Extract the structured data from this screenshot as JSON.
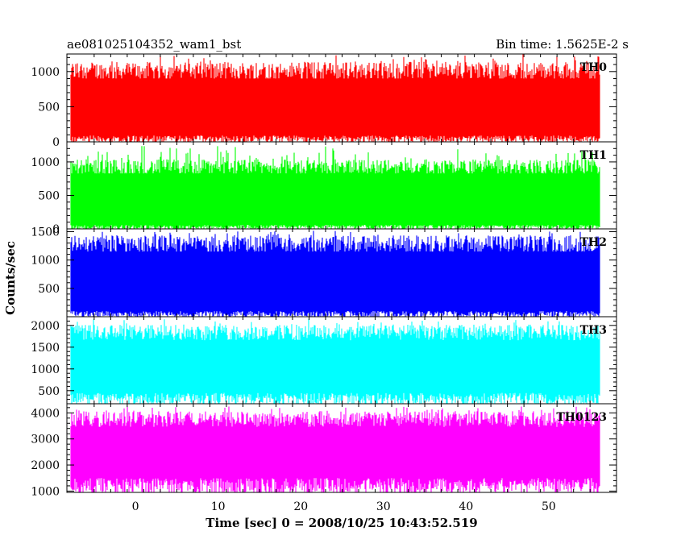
{
  "header": {
    "left_title": "ae081025104352_wam1_bst",
    "right_title": "Bin time: 1.5625E-2 s"
  },
  "chart_data": {
    "type": "line",
    "ylabel": "Counts/sec",
    "xlabel": "Time [sec] 0 = 2008/10/25 10:43:52.519",
    "xlim": [
      -8.3,
      58.2
    ],
    "data_xrange": [
      -7.8,
      56.2
    ],
    "bin_time_s": 0.015625,
    "grid": false,
    "x_ticks": [
      0,
      10,
      20,
      30,
      40,
      50
    ],
    "panels": [
      {
        "name": "TH0",
        "color": "#ff0000",
        "ylim": [
          0,
          1250
        ],
        "y_ticks": [
          0,
          500,
          1000
        ],
        "baseline": 500,
        "low": 90,
        "high": 980,
        "peak": 1250
      },
      {
        "name": "TH1",
        "color": "#00ff00",
        "ylim": [
          0,
          1300
        ],
        "y_ticks": [
          0,
          500,
          1000
        ],
        "baseline": 480,
        "low": 60,
        "high": 900,
        "peak": 1250
      },
      {
        "name": "TH2",
        "color": "#0000ff",
        "ylim": [
          0,
          1550
        ],
        "y_ticks": [
          500,
          1000,
          1500
        ],
        "baseline": 680,
        "low": 100,
        "high": 1250,
        "peak": 1520
      },
      {
        "name": "TH3",
        "color": "#00ffff",
        "ylim": [
          200,
          2200
        ],
        "y_ticks": [
          500,
          1000,
          1500,
          2000
        ],
        "baseline": 1150,
        "low": 450,
        "high": 1800,
        "peak": 2150
      },
      {
        "name": "TH0123",
        "color": "#ff00ff",
        "ylim": [
          950,
          4350
        ],
        "y_ticks": [
          1000,
          2000,
          3000,
          4000
        ],
        "baseline": 2600,
        "low": 1500,
        "high": 3700,
        "peak": 4250
      }
    ]
  }
}
